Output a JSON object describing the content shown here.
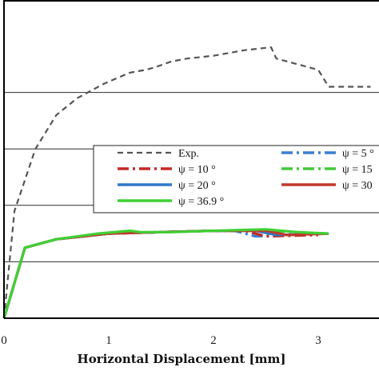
{
  "chart_data": {
    "type": "line",
    "title": "",
    "xlabel": "Horizontal Displacement [mm]",
    "ylabel": "",
    "xlim": [
      0,
      3.5
    ],
    "ylim": [
      0,
      1.0
    ],
    "x_ticks": [
      "0",
      "1",
      "2",
      "3"
    ],
    "grid": "horizontal",
    "legend_placement": "center-right (clipped at right edge)",
    "series": [
      {
        "name": "Exp.",
        "color": "#555555",
        "style": "dashed",
        "x": [
          0,
          0.1,
          0.3,
          0.5,
          0.7,
          0.95,
          1.2,
          1.35,
          1.45,
          1.6,
          1.75,
          2.0,
          2.3,
          2.55,
          2.6,
          2.9,
          3.0,
          3.1,
          3.3,
          3.5
        ],
        "y": [
          0,
          0.38,
          0.6,
          0.72,
          0.78,
          0.83,
          0.87,
          0.88,
          0.89,
          0.91,
          0.92,
          0.93,
          0.95,
          0.96,
          0.92,
          0.89,
          0.88,
          0.82,
          0.82,
          0.82
        ]
      },
      {
        "name": "ψ = 5 °",
        "color": "#3b7fd0",
        "style": "dashdot",
        "x": [
          0,
          0.2,
          0.5,
          1.0,
          1.5,
          2.0,
          2.2,
          2.4,
          3.1
        ],
        "y": [
          0,
          0.25,
          0.28,
          0.3,
          0.305,
          0.31,
          0.31,
          0.29,
          0.3
        ]
      },
      {
        "name": "ψ = 10 °",
        "color": "#c62828",
        "style": "dashdot",
        "x": [
          0,
          0.2,
          0.5,
          1.0,
          1.5,
          2.0,
          2.3,
          2.5,
          3.0
        ],
        "y": [
          0,
          0.25,
          0.28,
          0.3,
          0.305,
          0.31,
          0.31,
          0.29,
          0.295
        ]
      },
      {
        "name": "ψ = 15",
        "color": "#44c83a",
        "style": "dashdot",
        "x": [
          0,
          0.2,
          0.5,
          1.0,
          1.5,
          2.0,
          2.5,
          3.1
        ],
        "y": [
          0,
          0.25,
          0.28,
          0.3,
          0.305,
          0.31,
          0.31,
          0.3
        ]
      },
      {
        "name": "ψ = 20 °",
        "color": "#2f78c8",
        "style": "solid",
        "x": [
          0,
          0.2,
          0.5,
          1.0,
          1.5,
          2.0,
          2.4,
          2.6,
          3.1
        ],
        "y": [
          0,
          0.25,
          0.28,
          0.3,
          0.305,
          0.31,
          0.31,
          0.295,
          0.3
        ]
      },
      {
        "name": "ψ = 30",
        "color": "#c0392b",
        "style": "solid",
        "x": [
          0,
          0.2,
          0.5,
          1.0,
          1.5,
          2.0,
          2.5,
          2.7,
          3.1
        ],
        "y": [
          0,
          0.25,
          0.28,
          0.3,
          0.305,
          0.31,
          0.31,
          0.295,
          0.3
        ]
      },
      {
        "name": "ψ = 36.9 °",
        "color": "#3fd034",
        "style": "solid",
        "x": [
          0,
          0.2,
          0.5,
          0.9,
          1.2,
          1.3,
          1.6,
          2.0,
          2.5,
          2.8,
          3.1
        ],
        "y": [
          0,
          0.25,
          0.28,
          0.3,
          0.31,
          0.305,
          0.305,
          0.31,
          0.315,
          0.305,
          0.3
        ]
      }
    ]
  }
}
